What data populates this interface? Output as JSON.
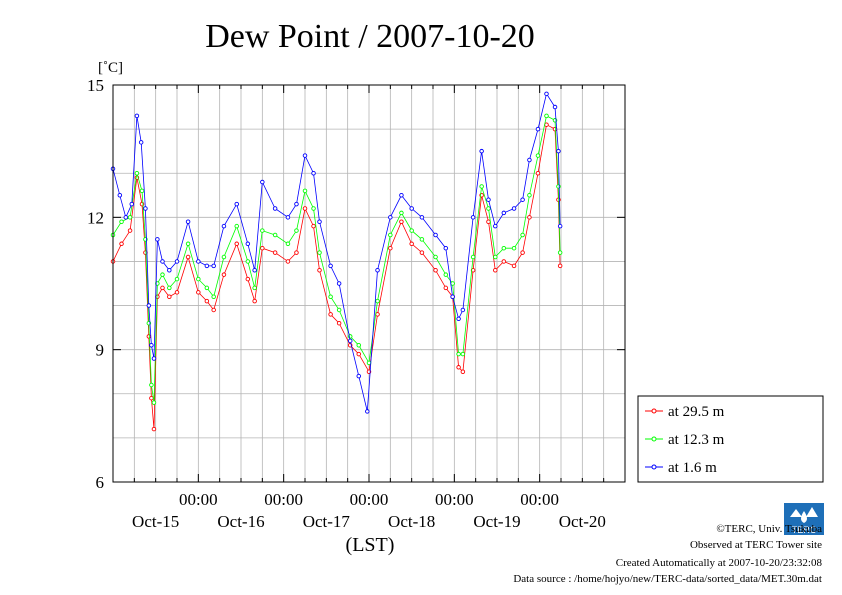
{
  "chart_data": {
    "type": "line",
    "title": "Dew Point / 2007-10-20",
    "ylabel": "[˚C]",
    "xlabel": "(LST)",
    "ylim": [
      6,
      15
    ],
    "xlim": [
      0,
      6
    ],
    "y_ticks": [
      "6",
      "9",
      "12",
      "15"
    ],
    "x_tick_time": [
      "00:00",
      "00:00",
      "00:00",
      "00:00",
      "00:00"
    ],
    "x_tick_dates": [
      "Oct-15",
      "Oct-16",
      "Oct-17",
      "Oct-18",
      "Oct-19",
      "Oct-20"
    ],
    "grid": true,
    "legend_position": "right",
    "series": [
      {
        "name": "at 29.5 m",
        "color": "#ff0000",
        "points": [
          [
            0.0,
            11.0
          ],
          [
            0.1,
            11.4
          ],
          [
            0.2,
            11.7
          ],
          [
            0.28,
            12.9
          ],
          [
            0.34,
            12.3
          ],
          [
            0.38,
            11.2
          ],
          [
            0.42,
            9.3
          ],
          [
            0.45,
            7.9
          ],
          [
            0.48,
            7.2
          ],
          [
            0.52,
            10.2
          ],
          [
            0.58,
            10.4
          ],
          [
            0.66,
            10.2
          ],
          [
            0.75,
            10.3
          ],
          [
            0.88,
            11.1
          ],
          [
            1.0,
            10.3
          ],
          [
            1.1,
            10.1
          ],
          [
            1.18,
            9.9
          ],
          [
            1.3,
            10.7
          ],
          [
            1.45,
            11.4
          ],
          [
            1.58,
            10.6
          ],
          [
            1.66,
            10.1
          ],
          [
            1.75,
            11.3
          ],
          [
            1.9,
            11.2
          ],
          [
            2.05,
            11.0
          ],
          [
            2.15,
            11.2
          ],
          [
            2.25,
            12.2
          ],
          [
            2.35,
            11.8
          ],
          [
            2.42,
            10.8
          ],
          [
            2.55,
            9.8
          ],
          [
            2.65,
            9.6
          ],
          [
            2.78,
            9.1
          ],
          [
            2.88,
            8.9
          ],
          [
            3.0,
            8.5
          ],
          [
            3.1,
            9.8
          ],
          [
            3.25,
            11.3
          ],
          [
            3.38,
            11.9
          ],
          [
            3.5,
            11.4
          ],
          [
            3.62,
            11.2
          ],
          [
            3.78,
            10.8
          ],
          [
            3.9,
            10.4
          ],
          [
            3.98,
            10.2
          ],
          [
            4.05,
            8.6
          ],
          [
            4.1,
            8.5
          ],
          [
            4.22,
            10.8
          ],
          [
            4.32,
            12.5
          ],
          [
            4.4,
            11.9
          ],
          [
            4.48,
            10.8
          ],
          [
            4.58,
            11.0
          ],
          [
            4.7,
            10.9
          ],
          [
            4.8,
            11.2
          ],
          [
            4.88,
            12.0
          ],
          [
            4.98,
            13.0
          ],
          [
            5.08,
            14.1
          ],
          [
            5.18,
            14.0
          ],
          [
            5.22,
            12.4
          ],
          [
            5.24,
            10.9
          ]
        ]
      },
      {
        "name": "at 12.3 m",
        "color": "#00ff00",
        "points": [
          [
            0.0,
            11.6
          ],
          [
            0.1,
            11.9
          ],
          [
            0.2,
            12.0
          ],
          [
            0.28,
            13.0
          ],
          [
            0.34,
            12.6
          ],
          [
            0.38,
            11.5
          ],
          [
            0.42,
            9.6
          ],
          [
            0.45,
            8.2
          ],
          [
            0.48,
            7.8
          ],
          [
            0.52,
            10.5
          ],
          [
            0.58,
            10.7
          ],
          [
            0.66,
            10.4
          ],
          [
            0.75,
            10.6
          ],
          [
            0.88,
            11.4
          ],
          [
            1.0,
            10.6
          ],
          [
            1.1,
            10.4
          ],
          [
            1.18,
            10.2
          ],
          [
            1.3,
            11.1
          ],
          [
            1.45,
            11.8
          ],
          [
            1.58,
            11.0
          ],
          [
            1.66,
            10.4
          ],
          [
            1.75,
            11.7
          ],
          [
            1.9,
            11.6
          ],
          [
            2.05,
            11.4
          ],
          [
            2.15,
            11.7
          ],
          [
            2.25,
            12.6
          ],
          [
            2.35,
            12.2
          ],
          [
            2.42,
            11.2
          ],
          [
            2.55,
            10.2
          ],
          [
            2.65,
            9.9
          ],
          [
            2.78,
            9.3
          ],
          [
            2.88,
            9.1
          ],
          [
            3.0,
            8.7
          ],
          [
            3.1,
            10.1
          ],
          [
            3.25,
            11.6
          ],
          [
            3.38,
            12.1
          ],
          [
            3.5,
            11.7
          ],
          [
            3.62,
            11.5
          ],
          [
            3.78,
            11.1
          ],
          [
            3.9,
            10.7
          ],
          [
            3.98,
            10.5
          ],
          [
            4.05,
            8.9
          ],
          [
            4.1,
            8.9
          ],
          [
            4.22,
            11.1
          ],
          [
            4.32,
            12.7
          ],
          [
            4.4,
            12.2
          ],
          [
            4.48,
            11.1
          ],
          [
            4.58,
            11.3
          ],
          [
            4.7,
            11.3
          ],
          [
            4.8,
            11.6
          ],
          [
            4.88,
            12.5
          ],
          [
            4.98,
            13.4
          ],
          [
            5.08,
            14.3
          ],
          [
            5.18,
            14.2
          ],
          [
            5.22,
            12.7
          ],
          [
            5.24,
            11.2
          ]
        ]
      },
      {
        "name": "at 1.6 m",
        "color": "#0000ff",
        "points": [
          [
            0.0,
            13.1
          ],
          [
            0.08,
            12.5
          ],
          [
            0.15,
            12.0
          ],
          [
            0.22,
            12.3
          ],
          [
            0.28,
            14.3
          ],
          [
            0.33,
            13.7
          ],
          [
            0.38,
            12.2
          ],
          [
            0.42,
            10.0
          ],
          [
            0.45,
            9.1
          ],
          [
            0.48,
            8.8
          ],
          [
            0.52,
            11.5
          ],
          [
            0.58,
            11.0
          ],
          [
            0.66,
            10.8
          ],
          [
            0.75,
            11.0
          ],
          [
            0.88,
            11.9
          ],
          [
            1.0,
            11.0
          ],
          [
            1.1,
            10.9
          ],
          [
            1.18,
            10.9
          ],
          [
            1.3,
            11.8
          ],
          [
            1.45,
            12.3
          ],
          [
            1.58,
            11.4
          ],
          [
            1.66,
            10.8
          ],
          [
            1.75,
            12.8
          ],
          [
            1.9,
            12.2
          ],
          [
            2.05,
            12.0
          ],
          [
            2.15,
            12.3
          ],
          [
            2.25,
            13.4
          ],
          [
            2.35,
            13.0
          ],
          [
            2.42,
            11.9
          ],
          [
            2.55,
            10.9
          ],
          [
            2.65,
            10.5
          ],
          [
            2.78,
            9.2
          ],
          [
            2.88,
            8.4
          ],
          [
            2.98,
            7.6
          ],
          [
            3.1,
            10.8
          ],
          [
            3.25,
            12.0
          ],
          [
            3.38,
            12.5
          ],
          [
            3.5,
            12.2
          ],
          [
            3.62,
            12.0
          ],
          [
            3.78,
            11.6
          ],
          [
            3.9,
            11.3
          ],
          [
            3.98,
            10.2
          ],
          [
            4.05,
            9.7
          ],
          [
            4.1,
            9.9
          ],
          [
            4.22,
            12.0
          ],
          [
            4.32,
            13.5
          ],
          [
            4.4,
            12.4
          ],
          [
            4.48,
            11.8
          ],
          [
            4.58,
            12.1
          ],
          [
            4.7,
            12.2
          ],
          [
            4.8,
            12.4
          ],
          [
            4.88,
            13.3
          ],
          [
            4.98,
            14.0
          ],
          [
            5.08,
            14.8
          ],
          [
            5.18,
            14.5
          ],
          [
            5.22,
            13.5
          ],
          [
            5.24,
            11.8
          ]
        ]
      }
    ]
  },
  "credits": {
    "copyright": "©TERC, Univ. Tsukuba",
    "observed": "Observed at TERC Tower site",
    "created": "Created Automatically at 2007-10-20/23:32:08",
    "source": "Data source : /home/hojyo/new/TERC-data/sorted_data/MET.30m.dat"
  },
  "logo": {
    "text": "TERC",
    "color": "#1e6fb8"
  }
}
